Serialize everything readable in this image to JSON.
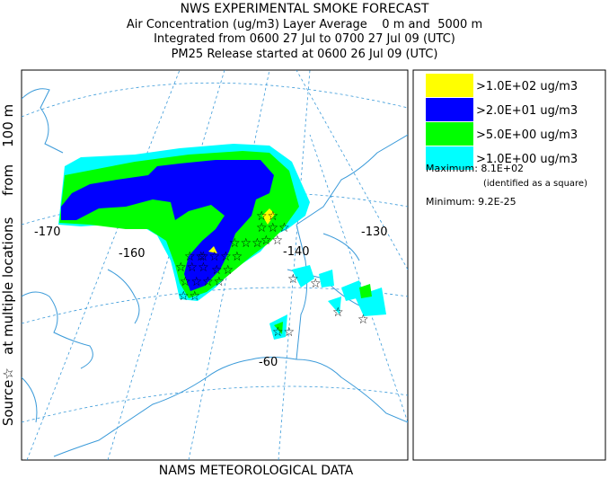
{
  "header": {
    "title": "NWS EXPERIMENTAL SMOKE FORECAST",
    "lines": [
      "Air Concentration (ug/m3) Layer Average    0 m and  5000 m",
      "Integrated from 0600 27 Jul to 0700 27 Jul 09 (UTC)",
      "PM25 Release started at 0600 26 Jul 09 (UTC)"
    ]
  },
  "side_label": "Source☆   at multiple locations     from    100 m",
  "footer": "NAMS METEOROLOGICAL DATA",
  "map": {
    "labels": [
      "-170",
      "-160",
      "-140",
      "-130",
      "-60"
    ]
  },
  "legend": {
    "items": [
      {
        "label": ">1.0E+02 ug/m3",
        "color": "#ffff00"
      },
      {
        "label": ">2.0E+01 ug/m3",
        "color": "#0000ff"
      },
      {
        "label": ">5.0E+00 ug/m3",
        "color": "#00ff00"
      },
      {
        "label": ">1.0E+00 ug/m3",
        "color": "#00ffff"
      }
    ],
    "maximum": "Maximum: 8.1E+02",
    "maximum_note": "(identified as a square)",
    "minimum": "Minimum: 9.2E-25"
  }
}
